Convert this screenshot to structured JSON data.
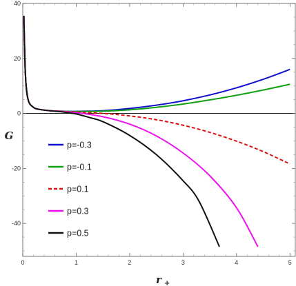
{
  "chart_data": {
    "type": "line",
    "xlabel": "r",
    "xlabel_subscript": "+",
    "ylabel": "G",
    "xlim": [
      0,
      5.1
    ],
    "ylim": [
      -52,
      40
    ],
    "xticks": [
      {
        "v": 0,
        "label": "0"
      },
      {
        "v": 1,
        "label": "1"
      },
      {
        "v": 2,
        "label": "2"
      },
      {
        "v": 3,
        "label": "3"
      },
      {
        "v": 4,
        "label": "4"
      },
      {
        "v": 5,
        "label": "5"
      }
    ],
    "yticks": [
      {
        "v": 40,
        "label": "40"
      },
      {
        "v": 20,
        "label": "20"
      },
      {
        "v": 0,
        "label": "0"
      },
      {
        "v": -20,
        "label": "-20"
      },
      {
        "v": -40,
        "label": "-40"
      }
    ],
    "legend_position": "left-center",
    "grid": false,
    "series": [
      {
        "name": "p=-0.3",
        "color": "#1010cc",
        "dash": "solid",
        "points": [
          [
            0.02,
            35.5
          ],
          [
            0.05,
            14
          ],
          [
            0.1,
            5
          ],
          [
            0.2,
            2.2
          ],
          [
            0.3,
            1.5
          ],
          [
            0.5,
            1.0
          ],
          [
            0.75,
            0.8
          ],
          [
            1.0,
            0.75
          ],
          [
            1.5,
            1.0
          ],
          [
            2.0,
            1.8
          ],
          [
            2.5,
            3.0
          ],
          [
            3.0,
            4.6
          ],
          [
            3.5,
            6.7
          ],
          [
            4.0,
            9.3
          ],
          [
            4.5,
            12.4
          ],
          [
            5.0,
            16.0
          ]
        ]
      },
      {
        "name": "p=-0.1",
        "color": "#10a010",
        "dash": "solid",
        "points": [
          [
            0.02,
            35.5
          ],
          [
            0.05,
            14
          ],
          [
            0.1,
            5
          ],
          [
            0.2,
            2.2
          ],
          [
            0.3,
            1.5
          ],
          [
            0.5,
            1.0
          ],
          [
            0.75,
            0.8
          ],
          [
            1.0,
            0.7
          ],
          [
            1.5,
            0.8
          ],
          [
            2.0,
            1.3
          ],
          [
            2.5,
            2.2
          ],
          [
            3.0,
            3.4
          ],
          [
            3.5,
            4.9
          ],
          [
            4.0,
            6.6
          ],
          [
            4.5,
            8.5
          ],
          [
            5.0,
            10.6
          ]
        ]
      },
      {
        "name": "p=0.1",
        "color": "#dd1111",
        "dash": "dashed",
        "points": [
          [
            0.02,
            35.5
          ],
          [
            0.05,
            14
          ],
          [
            0.1,
            5
          ],
          [
            0.2,
            2.2
          ],
          [
            0.3,
            1.5
          ],
          [
            0.5,
            1.0
          ],
          [
            0.75,
            0.75
          ],
          [
            1.0,
            0.5
          ],
          [
            1.5,
            0
          ],
          [
            2.0,
            -0.9
          ],
          [
            2.5,
            -2.3
          ],
          [
            3.0,
            -4.3
          ],
          [
            3.5,
            -6.9
          ],
          [
            4.0,
            -10.1
          ],
          [
            4.5,
            -13.9
          ],
          [
            5.0,
            -18.4
          ]
        ]
      },
      {
        "name": "p=0.3",
        "color": "#ee11ee",
        "dash": "solid",
        "points": [
          [
            0.02,
            35.5
          ],
          [
            0.05,
            14
          ],
          [
            0.1,
            5
          ],
          [
            0.2,
            2.2
          ],
          [
            0.3,
            1.5
          ],
          [
            0.5,
            1.0
          ],
          [
            0.75,
            0.65
          ],
          [
            1.0,
            0.3
          ],
          [
            1.5,
            -1.2
          ],
          [
            2.0,
            -3.9
          ],
          [
            2.5,
            -8.2
          ],
          [
            3.0,
            -14.4
          ],
          [
            3.5,
            -22.7
          ],
          [
            4.0,
            -34.3
          ],
          [
            4.4,
            -48.5
          ]
        ]
      },
      {
        "name": "p=0.5",
        "color": "#111111",
        "dash": "solid",
        "points": [
          [
            0.02,
            35.5
          ],
          [
            0.05,
            14
          ],
          [
            0.1,
            5
          ],
          [
            0.2,
            2.2
          ],
          [
            0.3,
            1.5
          ],
          [
            0.5,
            1.0
          ],
          [
            0.75,
            0.5
          ],
          [
            1.0,
            -0.2
          ],
          [
            1.25,
            -1.5
          ],
          [
            1.5,
            -3.0
          ],
          [
            2.0,
            -8.0
          ],
          [
            2.5,
            -15.0
          ],
          [
            3.0,
            -24.5
          ],
          [
            3.3,
            -32
          ],
          [
            3.68,
            -48.5
          ]
        ]
      }
    ]
  }
}
